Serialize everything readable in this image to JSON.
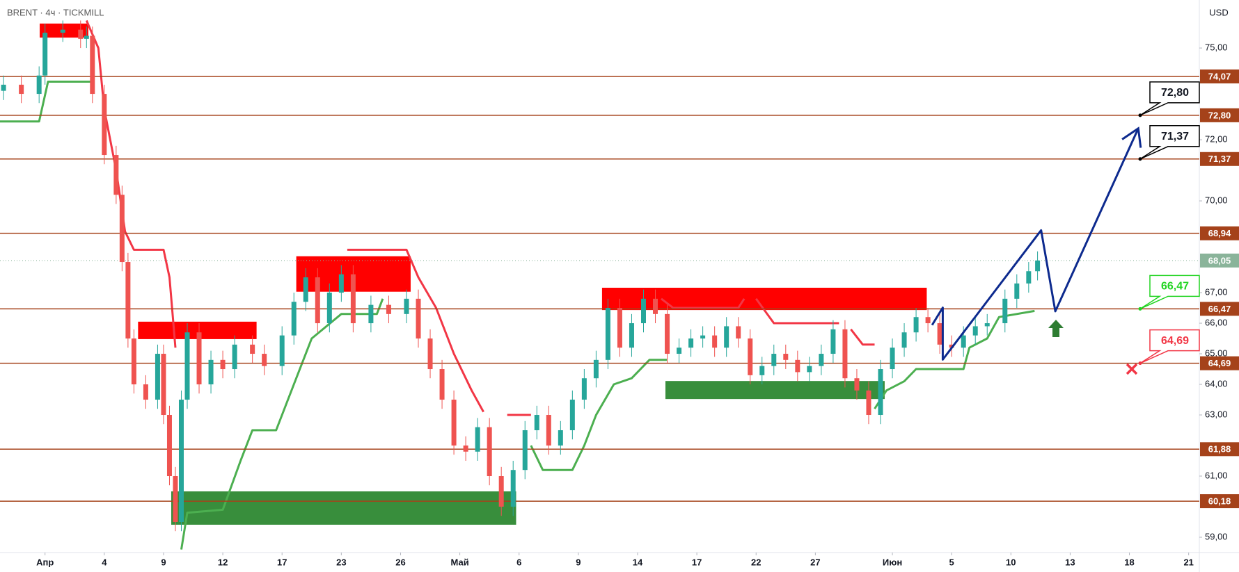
{
  "chart_data": {
    "type": "candlestick",
    "title": "BRENT · 4ч · TICKMILL",
    "y_axis_label": "USD",
    "xlim": [
      -0.76,
      19.48
    ],
    "ylim": [
      58.5,
      76.57
    ],
    "xticks": [
      {
        "value": 0,
        "label": "Апр"
      },
      {
        "value": 1,
        "label": "4"
      },
      {
        "value": 2,
        "label": "9"
      },
      {
        "value": 3,
        "label": "12"
      },
      {
        "value": 4,
        "label": "17"
      },
      {
        "value": 5,
        "label": "23"
      },
      {
        "value": 6,
        "label": "26"
      },
      {
        "value": 7,
        "label": "Май"
      },
      {
        "value": 8,
        "label": "6"
      },
      {
        "value": 9,
        "label": "9"
      },
      {
        "value": 10,
        "label": "14"
      },
      {
        "value": 11,
        "label": "17"
      },
      {
        "value": 12,
        "label": "22"
      },
      {
        "value": 13,
        "label": "27"
      },
      {
        "value": 14.3,
        "label": "Июн"
      },
      {
        "value": 15.3,
        "label": "5"
      },
      {
        "value": 16.3,
        "label": "10"
      },
      {
        "value": 17.3,
        "label": "13"
      },
      {
        "value": 18.3,
        "label": "18"
      },
      {
        "value": 19.3,
        "label": "21"
      }
    ],
    "yticks": [
      {
        "value": 75,
        "label": "75,00"
      },
      {
        "value": 72,
        "label": "72,00"
      },
      {
        "value": 70,
        "label": "70,00"
      },
      {
        "value": 67,
        "label": "67,00"
      },
      {
        "value": 66,
        "label": "66,00"
      },
      {
        "value": 65,
        "label": "65,00"
      },
      {
        "value": 64,
        "label": "64,00"
      },
      {
        "value": 63,
        "label": "63,00"
      },
      {
        "value": 61,
        "label": "61,00"
      },
      {
        "value": 59,
        "label": "59,00"
      }
    ],
    "up_color": "#26a69a",
    "down_color": "#ef5350",
    "candles": {
      "x": [
        -0.7,
        -0.4,
        -0.1,
        0.0,
        0.3,
        0.6,
        0.7,
        0.8,
        1.0,
        1.2,
        1.3,
        1.4,
        1.5,
        1.7,
        1.9,
        2.0,
        2.1,
        2.2,
        2.3,
        2.4,
        2.6,
        2.8,
        3.0,
        3.2,
        3.5,
        3.7,
        4.0,
        4.2,
        4.4,
        4.6,
        4.8,
        5.0,
        5.2,
        5.5,
        5.8,
        6.1,
        6.3,
        6.5,
        6.7,
        6.9,
        7.1,
        7.3,
        7.5,
        7.7,
        7.9,
        8.1,
        8.3,
        8.5,
        8.7,
        8.9,
        9.1,
        9.3,
        9.5,
        9.7,
        9.9,
        10.1,
        10.3,
        10.5,
        10.7,
        10.9,
        11.1,
        11.3,
        11.5,
        11.7,
        11.9,
        12.1,
        12.3,
        12.5,
        12.7,
        12.9,
        13.1,
        13.3,
        13.5,
        13.7,
        13.9,
        14.1,
        14.3,
        14.5,
        14.7,
        14.9,
        15.1,
        15.3,
        15.5,
        15.7,
        15.9,
        16.2,
        16.4,
        16.6,
        16.75
      ],
      "open": [
        73.6,
        73.8,
        73.5,
        74.1,
        75.5,
        75.6,
        75.3,
        75.4,
        73.5,
        71.5,
        70.2,
        68.0,
        65.5,
        64.0,
        63.5,
        65.0,
        63.0,
        61.0,
        59.5,
        63.5,
        65.7,
        64.0,
        64.8,
        64.5,
        65.3,
        65.0,
        64.6,
        65.6,
        66.7,
        67.5,
        66.0,
        67.0,
        67.6,
        66.0,
        66.6,
        66.3,
        66.8,
        65.5,
        64.5,
        63.5,
        62.0,
        61.8,
        62.6,
        61.0,
        60.0,
        61.2,
        62.5,
        63.0,
        62.0,
        62.5,
        63.5,
        64.2,
        64.8,
        66.5,
        65.2,
        66.0,
        66.8,
        66.3,
        65.0,
        65.2,
        65.5,
        65.6,
        65.2,
        65.9,
        65.5,
        64.3,
        64.6,
        65.0,
        64.8,
        64.4,
        64.6,
        65.0,
        65.8,
        64.2,
        63.8,
        63.0,
        64.5,
        65.2,
        65.7,
        66.2,
        66.0,
        65.3,
        65.2,
        65.6,
        65.9,
        66.0,
        66.8,
        67.3,
        67.7
      ],
      "high": [
        74.1,
        74.1,
        74.4,
        75.8,
        75.9,
        75.9,
        75.7,
        75.7,
        73.8,
        71.8,
        70.5,
        68.3,
        65.8,
        64.3,
        65.3,
        65.3,
        63.3,
        61.3,
        63.8,
        66.0,
        66.0,
        65.1,
        65.1,
        65.6,
        65.6,
        65.3,
        65.9,
        67.0,
        67.8,
        67.8,
        67.3,
        67.9,
        67.9,
        66.9,
        66.9,
        67.1,
        67.1,
        65.8,
        64.8,
        63.8,
        62.3,
        62.9,
        62.9,
        61.3,
        61.5,
        62.8,
        63.3,
        63.3,
        62.8,
        63.8,
        64.5,
        65.1,
        66.8,
        66.8,
        66.3,
        67.1,
        67.1,
        66.6,
        65.5,
        65.8,
        65.9,
        65.9,
        66.2,
        66.2,
        65.8,
        64.9,
        65.3,
        65.3,
        65.1,
        64.9,
        65.3,
        66.1,
        66.1,
        64.5,
        64.1,
        64.8,
        65.5,
        66.0,
        66.5,
        66.5,
        66.3,
        65.6,
        65.9,
        66.2,
        66.3,
        67.1,
        67.6,
        68.0,
        68.35
      ],
      "low": [
        73.3,
        73.2,
        73.2,
        73.8,
        75.2,
        75.0,
        75.0,
        73.2,
        71.2,
        69.9,
        67.7,
        65.2,
        63.7,
        63.2,
        63.2,
        62.7,
        60.7,
        59.2,
        59.2,
        63.2,
        63.7,
        63.7,
        64.2,
        64.2,
        64.7,
        64.3,
        64.3,
        65.3,
        66.4,
        65.7,
        65.7,
        66.7,
        65.7,
        65.7,
        66.0,
        66.0,
        65.2,
        64.2,
        63.2,
        61.7,
        61.5,
        61.5,
        60.7,
        59.7,
        59.7,
        60.9,
        62.2,
        61.7,
        61.7,
        62.2,
        63.2,
        63.9,
        64.5,
        64.9,
        64.9,
        65.7,
        66.0,
        64.7,
        64.7,
        64.9,
        65.2,
        64.9,
        64.9,
        65.2,
        64.0,
        64.0,
        64.3,
        64.5,
        64.1,
        64.1,
        64.3,
        64.7,
        63.9,
        63.5,
        62.7,
        62.7,
        64.2,
        64.9,
        65.4,
        65.7,
        65.0,
        64.9,
        64.9,
        65.3,
        65.6,
        65.7,
        66.5,
        67.0,
        67.4
      ],
      "close": [
        73.8,
        73.5,
        74.1,
        75.5,
        75.6,
        75.3,
        75.4,
        73.5,
        71.5,
        70.2,
        68.0,
        65.5,
        64.0,
        63.5,
        65.0,
        63.0,
        61.0,
        59.5,
        63.5,
        65.7,
        64.0,
        64.8,
        64.5,
        65.3,
        65.0,
        64.6,
        65.6,
        66.7,
        67.5,
        66.0,
        67.0,
        67.6,
        66.0,
        66.6,
        66.3,
        66.8,
        65.5,
        64.5,
        63.5,
        62.0,
        61.8,
        62.6,
        61.0,
        60.0,
        61.2,
        62.5,
        63.0,
        62.0,
        62.5,
        63.5,
        64.2,
        64.8,
        66.5,
        65.2,
        66.0,
        66.8,
        66.3,
        65.0,
        65.2,
        65.5,
        65.6,
        65.2,
        65.9,
        65.5,
        64.3,
        64.6,
        65.0,
        64.8,
        64.4,
        64.6,
        65.0,
        65.8,
        64.2,
        63.8,
        63.0,
        64.5,
        65.2,
        65.7,
        66.2,
        66.0,
        65.3,
        65.2,
        65.6,
        65.9,
        66.0,
        66.8,
        67.3,
        67.7,
        68.05
      ]
    },
    "trend_up": {
      "color": "#4caf50",
      "x": [
        -0.76,
        -0.1,
        0.05,
        0.8,
        null,
        2.3,
        2.4,
        3.0,
        3.3,
        3.5,
        3.9,
        4.2,
        4.5,
        5.0,
        5.6,
        5.7,
        null,
        8.2,
        8.4,
        8.9,
        9.1,
        9.3,
        9.6,
        9.9,
        10.2,
        10.5,
        null,
        14.0,
        14.2,
        14.5,
        14.7,
        15.5,
        15.6,
        15.9,
        16.1,
        16.7
      ],
      "y": [
        72.6,
        72.6,
        73.9,
        73.9,
        null,
        58.6,
        59.8,
        59.9,
        61.5,
        62.5,
        62.5,
        64.0,
        65.5,
        66.3,
        66.3,
        66.8,
        null,
        62.0,
        61.2,
        61.2,
        62.0,
        63.0,
        64.0,
        64.2,
        64.8,
        64.8,
        null,
        63.2,
        63.8,
        64.1,
        64.5,
        64.5,
        65.2,
        65.5,
        66.2,
        66.4
      ]
    },
    "trend_down": {
      "color": "#f23645",
      "x": [
        0.7,
        0.9,
        1.0,
        1.2,
        1.35,
        1.5,
        2.0,
        2.1,
        2.2,
        null,
        5.1,
        6.1,
        6.3,
        6.6,
        6.9,
        7.2,
        7.4,
        null,
        7.8,
        8.2,
        null,
        10.4,
        10.6,
        11.7,
        11.8,
        null,
        12.0,
        12.3,
        13.4,
        null,
        13.6,
        13.8,
        14.0
      ],
      "y": [
        75.9,
        75.0,
        73.0,
        71.0,
        69.0,
        68.4,
        68.4,
        67.5,
        65.2,
        null,
        68.4,
        68.4,
        67.5,
        66.5,
        65.0,
        63.8,
        63.1,
        null,
        63.0,
        63.0,
        null,
        66.8,
        66.5,
        66.5,
        66.8,
        null,
        66.8,
        66.0,
        66.0,
        null,
        65.8,
        65.3,
        65.3
      ]
    },
    "zones": [
      {
        "x": [
          -0.09,
          0.73
        ],
        "y": [
          75.34,
          75.8
        ],
        "color": "#ff0000"
      },
      {
        "x": [
          1.57,
          3.57
        ],
        "y": [
          65.48,
          66.05
        ],
        "color": "#ff0000"
      },
      {
        "x": [
          4.24,
          6.17
        ],
        "y": [
          67.03,
          68.19
        ],
        "color": "#ff0000"
      },
      {
        "x": [
          9.4,
          14.88
        ],
        "y": [
          66.43,
          67.16
        ],
        "color": "#ff0000"
      },
      {
        "x": [
          2.13,
          7.95
        ],
        "y": [
          59.41,
          60.5
        ],
        "color": "#388e3c"
      },
      {
        "x": [
          10.47,
          14.17
        ],
        "y": [
          63.52,
          64.11
        ],
        "color": "#388e3c"
      }
    ],
    "levels": [
      {
        "value": 74.07,
        "label": "74,07"
      },
      {
        "value": 72.8,
        "label": "72,80"
      },
      {
        "value": 71.37,
        "label": "71,37"
      },
      {
        "value": 68.94,
        "label": "68,94"
      },
      {
        "value": 66.47,
        "label": "66,47"
      },
      {
        "value": 64.69,
        "label": "64,69"
      },
      {
        "value": 61.88,
        "label": "61,88"
      },
      {
        "value": 60.18,
        "label": "60,18"
      }
    ],
    "level_color": "#a5421a",
    "current_price": {
      "value": 68.05,
      "label": "68,05",
      "color": "#8ab49a"
    },
    "projection": {
      "color": "#0d2a8e",
      "x": [
        14.97,
        15.15,
        15.15,
        16.81,
        17.05,
        18.45
      ],
      "y": [
        65.94,
        66.51,
        64.81,
        69.04,
        66.39,
        72.37
      ]
    },
    "callouts": [
      {
        "value": 72.8,
        "label": "72,80",
        "color": "#000000"
      },
      {
        "value": 71.37,
        "label": "71,37",
        "color": "#000000"
      },
      {
        "value": 66.47,
        "label": "66,47",
        "color": "#22d422"
      },
      {
        "value": 64.69,
        "label": "64,69",
        "color": "#f23645"
      }
    ]
  }
}
